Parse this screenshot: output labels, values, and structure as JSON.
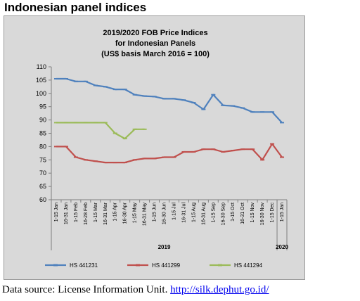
{
  "page": {
    "heading": "Indonesian panel indices",
    "footer_text": "Data source: License Information Unit. ",
    "footer_link": "http://silk.dephut.go.id/"
  },
  "chart_data": {
    "type": "line",
    "title_lines": [
      "2019/2020 FOB Price Indices",
      "for Indonesian Panels",
      "(US$ basis March 2016 = 100)"
    ],
    "xlabel": "",
    "ylabel": "",
    "ylim": [
      60,
      110
    ],
    "yticks": [
      60,
      65,
      70,
      75,
      80,
      85,
      90,
      95,
      100,
      105,
      110
    ],
    "grid": false,
    "legend_position": "bottom",
    "x": [
      "1-15 Jan",
      "16-31 Jan",
      "1-15 Feb",
      "16-28 Feb",
      "1-15 Mar",
      "16-31 Mar",
      "1-15 Apr",
      "16-30 Apr",
      "1-15 May",
      "16-31 May",
      "1-15 Jun",
      "16-30 Jun",
      "1-15 Jul",
      "16-31 Jul",
      "1-15 Aug",
      "16-31 Aug",
      "1-15 Sep",
      "16-30 Sep",
      "1-15 Oct",
      "16-31 Oct",
      "1-15 Nov",
      "16-30 Nov",
      "1-15 Dec",
      "1-15 Jan"
    ],
    "x_groups": [
      {
        "label": "2019",
        "start": 0,
        "end": 22
      },
      {
        "label": "2020",
        "start": 23,
        "end": 23
      }
    ],
    "series": [
      {
        "name": "HS 441231",
        "color": "#4f81bd",
        "values": [
          105.5,
          105.5,
          104.5,
          104.5,
          103,
          102.5,
          101.5,
          101.5,
          99.5,
          99,
          98.8,
          98,
          98,
          97.5,
          96.5,
          94,
          99.5,
          95.5,
          95.3,
          94.5,
          93,
          93,
          93,
          89
        ]
      },
      {
        "name": "HS 441299",
        "color": "#c0504d",
        "values": [
          80,
          80,
          76,
          75,
          74.5,
          74,
          74,
          74,
          75,
          75.5,
          75.5,
          76,
          76,
          78,
          78,
          79,
          79,
          78,
          78.5,
          79,
          79,
          75,
          81,
          76
        ]
      },
      {
        "name": "HS 441294",
        "color": "#9bbb59",
        "values": [
          89,
          89,
          89,
          89,
          89,
          89,
          85,
          83,
          86.5,
          86.5,
          null,
          null,
          null,
          null,
          null,
          null,
          null,
          null,
          null,
          null,
          null,
          null,
          null,
          null
        ]
      }
    ]
  }
}
